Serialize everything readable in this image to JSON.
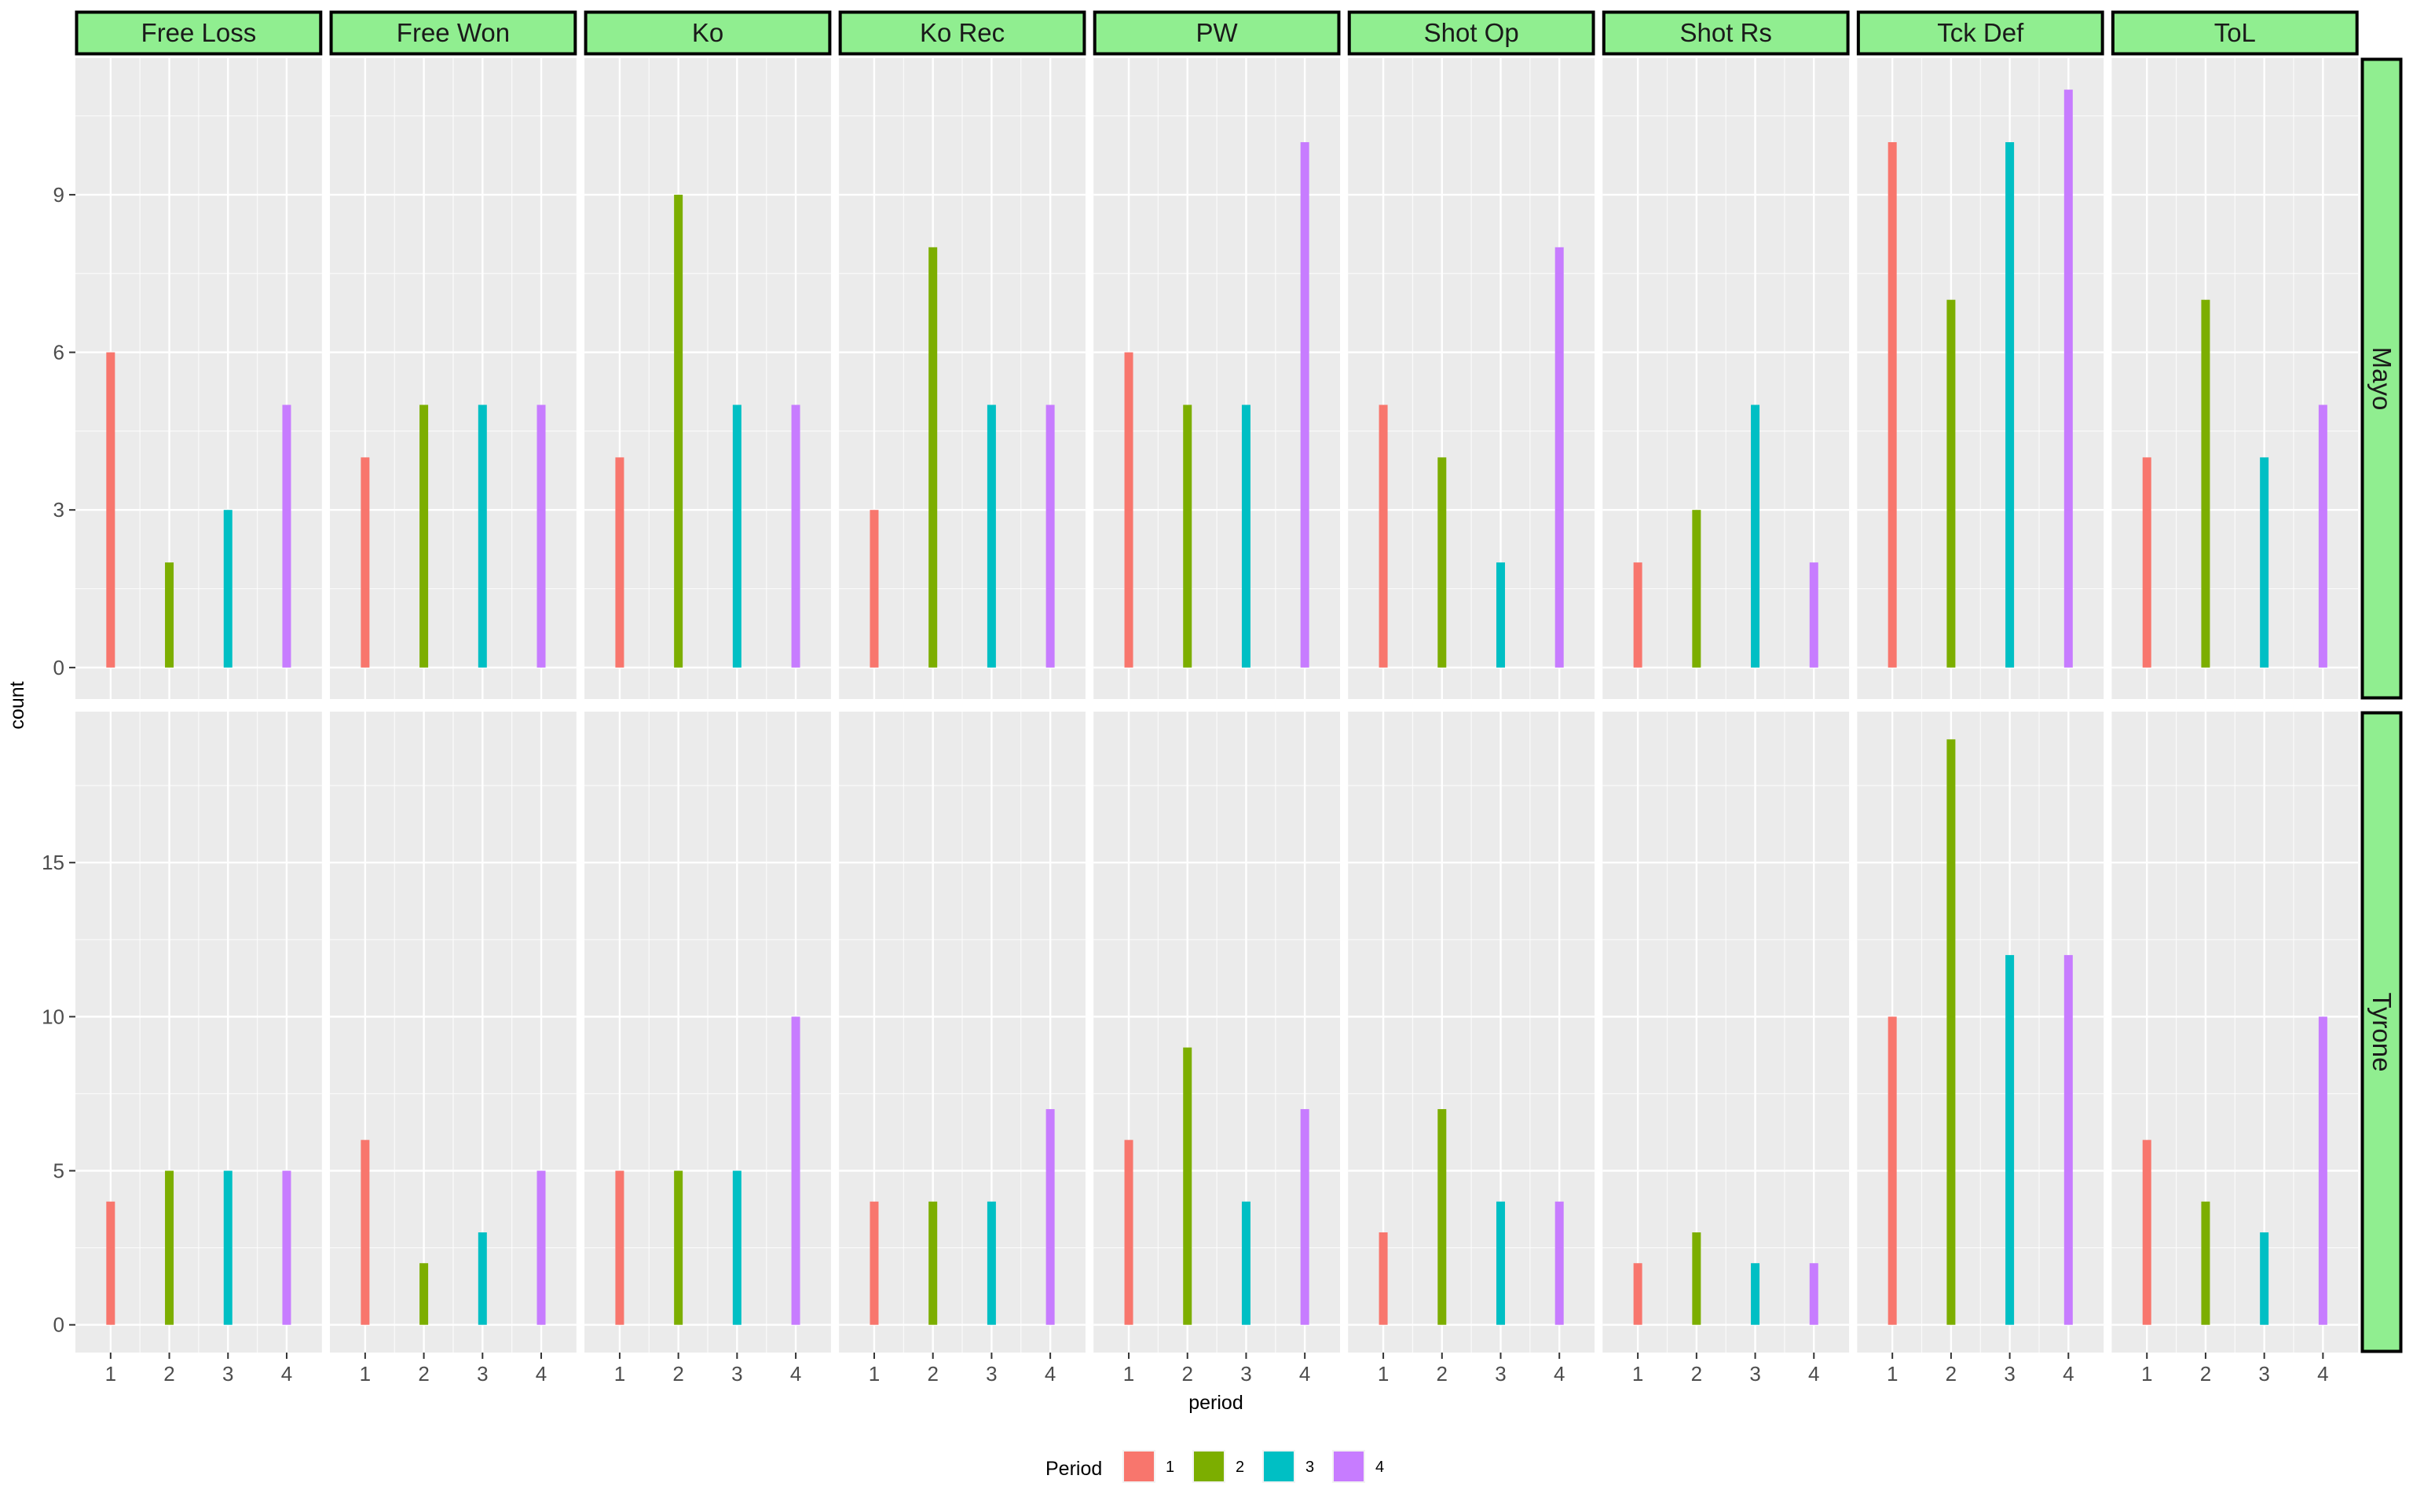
{
  "chart_data": {
    "type": "bar",
    "facets": [
      "Free Loss",
      "Free Won",
      "Ko",
      "Ko Rec",
      "PW",
      "Shot Op",
      "Shot Rs",
      "Tck Def",
      "ToL"
    ],
    "rows": [
      {
        "name": "Mayo",
        "ylim": [
          -0.6,
          11.6
        ],
        "yticks": [
          0,
          3,
          6,
          9
        ],
        "values": [
          [
            6,
            2,
            3,
            5
          ],
          [
            4,
            5,
            5,
            5
          ],
          [
            4,
            9,
            5,
            5
          ],
          [
            3,
            8,
            5,
            5
          ],
          [
            6,
            5,
            5,
            10
          ],
          [
            5,
            4,
            2,
            8
          ],
          [
            2,
            3,
            5,
            2
          ],
          [
            10,
            7,
            10,
            11
          ],
          [
            4,
            7,
            4,
            5
          ]
        ]
      },
      {
        "name": "Tyrone",
        "ylim": [
          -0.9,
          19.9
        ],
        "yticks": [
          0,
          5,
          10,
          15
        ],
        "values": [
          [
            4,
            5,
            5,
            5
          ],
          [
            6,
            2,
            3,
            5
          ],
          [
            5,
            5,
            5,
            10
          ],
          [
            4,
            4,
            4,
            7
          ],
          [
            6,
            9,
            4,
            7
          ],
          [
            3,
            7,
            4,
            4
          ],
          [
            2,
            3,
            2,
            2
          ],
          [
            10,
            19,
            12,
            12
          ],
          [
            6,
            4,
            3,
            10
          ]
        ]
      }
    ],
    "x_categories": [
      "1",
      "2",
      "3",
      "4"
    ],
    "xlabel": "period",
    "ylabel": "count",
    "legend": {
      "title": "Period",
      "position": "bottom",
      "items": [
        {
          "label": "1",
          "color": "#F8766D"
        },
        {
          "label": "2",
          "color": "#7CAE00"
        },
        {
          "label": "3",
          "color": "#00BFC4"
        },
        {
          "label": "4",
          "color": "#C77CFF"
        }
      ]
    },
    "grid": true
  },
  "colors": {
    "panel_background": "#EBEBEB",
    "grid_line": "#FFFFFF",
    "strip_fill": "#90EE90",
    "strip_border": "#000000"
  }
}
